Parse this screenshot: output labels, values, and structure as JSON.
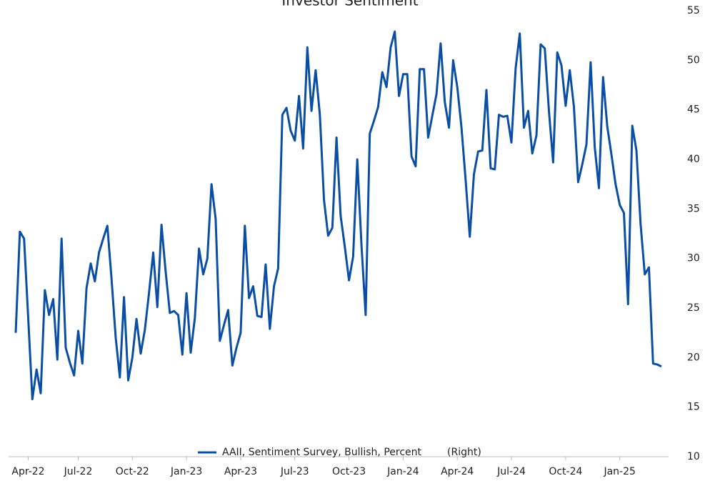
{
  "chart_data": {
    "type": "line",
    "title": "Investor Sentiment",
    "categories": [
      null,
      null,
      null,
      "Apr-22",
      null,
      null,
      null,
      null,
      null,
      null,
      null,
      null,
      null,
      null,
      null,
      "Jul-22",
      null,
      null,
      null,
      null,
      null,
      null,
      null,
      null,
      null,
      null,
      null,
      null,
      "Oct-22",
      null,
      null,
      null,
      null,
      null,
      null,
      null,
      null,
      null,
      null,
      null,
      null,
      "Jan-23",
      null,
      null,
      null,
      null,
      null,
      null,
      null,
      null,
      null,
      null,
      null,
      null,
      "Apr-23",
      null,
      null,
      null,
      null,
      null,
      null,
      null,
      null,
      null,
      null,
      null,
      null,
      "Jul-23",
      null,
      null,
      null,
      null,
      null,
      null,
      null,
      null,
      null,
      null,
      null,
      null,
      "Oct-23",
      null,
      null,
      null,
      null,
      null,
      null,
      null,
      null,
      null,
      null,
      null,
      null,
      "Jan-24",
      null,
      null,
      null,
      null,
      null,
      null,
      null,
      null,
      null,
      null,
      null,
      null,
      "Apr-24",
      null,
      null,
      null,
      null,
      null,
      null,
      null,
      null,
      null,
      null,
      null,
      null,
      "Jul-24",
      null,
      null,
      null,
      null,
      null,
      null,
      null,
      null,
      null,
      null,
      null,
      null,
      "Oct-24",
      null,
      null,
      null,
      null,
      null,
      null,
      null,
      null,
      null,
      null,
      null,
      null,
      "Jan-25",
      null,
      null,
      null,
      null,
      null,
      null,
      null,
      null,
      null,
      null
    ],
    "series": [
      {
        "name": "AAII, Sentiment Survey, Bullish, Percent",
        "axis_label": "(Right)",
        "color": "#0b4ea6",
        "values": [
          22.5,
          32.7,
          32,
          24,
          15.8,
          18.8,
          16.4,
          26.8,
          24.3,
          25.9,
          19.8,
          32,
          21,
          19.5,
          18.2,
          22.7,
          19.4,
          27,
          29.5,
          27.7,
          30.6,
          32,
          33.3,
          28,
          22,
          18,
          26.1,
          17.7,
          20,
          23.9,
          20.4,
          22.8,
          26.5,
          30.6,
          25.1,
          33.4,
          28.6,
          24.5,
          24.7,
          24.3,
          20.3,
          26.5,
          20.5,
          24,
          31,
          28.4,
          30,
          37.5,
          34,
          21.7,
          23.3,
          24.8,
          19.2,
          21,
          22.5,
          33.3,
          26,
          27.2,
          24.2,
          24.1,
          29.4,
          22.9,
          27.2,
          29,
          44.5,
          45.2,
          42.9,
          41.9,
          46.4,
          41.1,
          51.3,
          44.9,
          49,
          44.5,
          35.9,
          32.3,
          33.1,
          42.2,
          34.3,
          31.2,
          27.8,
          30.2,
          40,
          31.3,
          24.3,
          42.6,
          43.9,
          45.3,
          48.8,
          47.3,
          51.3,
          52.9,
          46.4,
          48.6,
          48.6,
          40.3,
          39.3,
          49.1,
          49.1,
          42.2,
          44.4,
          46.6,
          51.7,
          45.8,
          43.2,
          50,
          47.3,
          43.2,
          37.9,
          32.2,
          38.5,
          40.8,
          40.9,
          47,
          39.1,
          39,
          44.5,
          44.3,
          44.4,
          41.7,
          49.2,
          52.7,
          43.2,
          44.9,
          40.6,
          42.4,
          51.6,
          51.2,
          44.9,
          39.7,
          50.8,
          49.5,
          45.4,
          49,
          45.3,
          37.7,
          39.5,
          41.5,
          49.8,
          41.2,
          37.1,
          48.3,
          43.3,
          40.5,
          37.5,
          35.4,
          34.6,
          25.4,
          43.4,
          40.9,
          33.5,
          28.4,
          29.1,
          19.4,
          19.3,
          19.1
        ]
      }
    ],
    "ylim": [
      10,
      55
    ],
    "yticks": [
      10,
      15,
      20,
      25,
      30,
      35,
      40,
      45,
      50,
      55
    ],
    "y_axis_side": "right",
    "grid": false,
    "legend": "bottom"
  }
}
